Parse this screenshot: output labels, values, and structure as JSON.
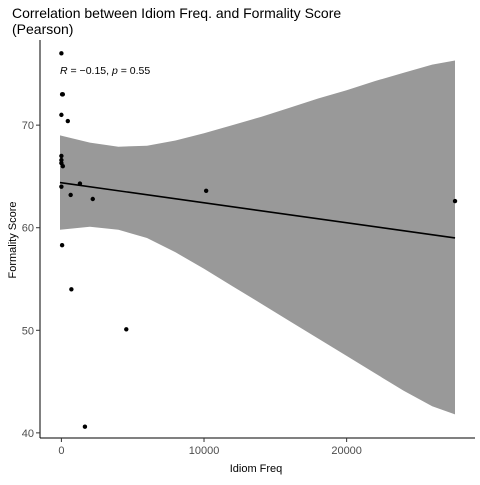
{
  "chart_data": {
    "type": "scatter",
    "title": "Correlation between Idiom Freq. and Formality Score",
    "subtitle": "(Pearson)",
    "xlabel": "Idiom Freq",
    "ylabel": "Formality Score",
    "xlim": [
      -1500,
      29000
    ],
    "ylim": [
      39.5,
      78.3
    ],
    "x_ticks": [
      0,
      10000,
      20000
    ],
    "x_tick_labels": [
      "0",
      "10000",
      "20000"
    ],
    "y_ticks": [
      40,
      50,
      60,
      70
    ],
    "y_tick_labels": [
      "40",
      "50",
      "60",
      "70"
    ],
    "grid": false,
    "annotation": {
      "r_symbol": "R",
      "r_text": " = −0.15, ",
      "p_symbol": "p",
      "p_text": " = 0.55"
    },
    "points": [
      {
        "x": 0,
        "y": 77
      },
      {
        "x": 50,
        "y": 73
      },
      {
        "x": 100,
        "y": 73
      },
      {
        "x": 0,
        "y": 71
      },
      {
        "x": 450,
        "y": 70.4
      },
      {
        "x": 0,
        "y": 67
      },
      {
        "x": 0,
        "y": 66.6
      },
      {
        "x": 0,
        "y": 66.3
      },
      {
        "x": 100,
        "y": 66
      },
      {
        "x": 1300,
        "y": 64.3
      },
      {
        "x": 0,
        "y": 64
      },
      {
        "x": 650,
        "y": 63.2
      },
      {
        "x": 2200,
        "y": 62.8
      },
      {
        "x": 10150,
        "y": 63.6
      },
      {
        "x": 27600,
        "y": 62.6
      },
      {
        "x": 50,
        "y": 58.3
      },
      {
        "x": 700,
        "y": 54
      },
      {
        "x": 4550,
        "y": 50.1
      },
      {
        "x": 1650,
        "y": 40.6
      }
    ],
    "regression_line": {
      "x": [
        -100,
        27600
      ],
      "y": [
        64.4,
        59
      ]
    },
    "confidence_band": {
      "x": [
        -100,
        2000,
        4000,
        6000,
        8000,
        10000,
        12000,
        14000,
        16000,
        18000,
        20000,
        22000,
        24000,
        26000,
        27600
      ],
      "upper": [
        69,
        68.3,
        67.9,
        68,
        68.5,
        69.2,
        70,
        70.8,
        71.7,
        72.6,
        73.4,
        74.3,
        75.1,
        75.9,
        76.3
      ],
      "lower": [
        59.8,
        60.1,
        59.8,
        59,
        57.6,
        56,
        54.3,
        52.6,
        50.9,
        49.2,
        47.5,
        45.8,
        44.1,
        42.6,
        41.8
      ]
    },
    "colors": {
      "band": "#999999",
      "line": "#000000",
      "point": "#000000",
      "axis": "#000000"
    }
  }
}
